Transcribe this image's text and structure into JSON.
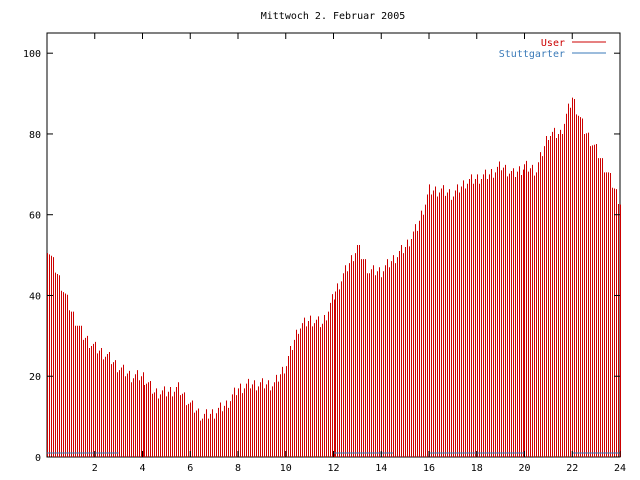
{
  "chart_data": {
    "type": "bar",
    "title": "Mittwoch 2. Februar 2005",
    "xlabel": "",
    "ylabel": "",
    "xlim": [
      0,
      24
    ],
    "ylim": [
      0,
      105
    ],
    "xticks": [
      2,
      4,
      6,
      8,
      10,
      12,
      14,
      16,
      18,
      20,
      22,
      24
    ],
    "yticks": [
      0,
      20,
      40,
      60,
      80,
      100
    ],
    "grid": false,
    "legend_position": "top-right",
    "series": [
      {
        "name": "User",
        "color": "#cc0000",
        "style": "impulses",
        "points": [
          [
            0.0,
            52
          ],
          [
            0.5,
            44
          ],
          [
            1.0,
            36
          ],
          [
            1.5,
            30
          ],
          [
            2.0,
            27
          ],
          [
            2.5,
            25
          ],
          [
            3.0,
            22
          ],
          [
            3.5,
            20
          ],
          [
            4.0,
            20
          ],
          [
            4.5,
            16
          ],
          [
            5.0,
            16
          ],
          [
            5.5,
            17
          ],
          [
            6.0,
            13
          ],
          [
            6.5,
            10
          ],
          [
            7.0,
            11
          ],
          [
            7.5,
            13
          ],
          [
            8.0,
            17
          ],
          [
            8.5,
            18
          ],
          [
            9.0,
            18
          ],
          [
            9.5,
            18
          ],
          [
            10.0,
            23
          ],
          [
            10.5,
            32
          ],
          [
            11.0,
            34
          ],
          [
            11.5,
            33
          ],
          [
            12.0,
            40
          ],
          [
            12.5,
            46
          ],
          [
            13.0,
            52
          ],
          [
            13.5,
            46
          ],
          [
            14.0,
            46
          ],
          [
            14.5,
            49
          ],
          [
            15.0,
            52
          ],
          [
            15.5,
            57
          ],
          [
            16.0,
            66
          ],
          [
            16.5,
            66
          ],
          [
            17.0,
            65
          ],
          [
            17.5,
            68
          ],
          [
            18.0,
            69
          ],
          [
            18.5,
            70
          ],
          [
            19.0,
            72
          ],
          [
            19.5,
            70
          ],
          [
            20.0,
            72
          ],
          [
            20.5,
            71
          ],
          [
            21.0,
            80
          ],
          [
            21.5,
            80
          ],
          [
            22.0,
            89
          ],
          [
            22.5,
            81
          ],
          [
            23.0,
            76
          ],
          [
            23.5,
            70
          ],
          [
            24.0,
            63
          ]
        ]
      },
      {
        "name": "Stuttgarter",
        "color": "#3a7ab8",
        "style": "impulses",
        "points": [
          [
            0,
            1
          ],
          [
            3,
            1
          ],
          [
            12,
            1
          ],
          [
            14.5,
            1
          ],
          [
            16,
            1
          ],
          [
            20,
            1
          ],
          [
            22,
            1
          ],
          [
            24,
            1
          ]
        ]
      }
    ]
  }
}
